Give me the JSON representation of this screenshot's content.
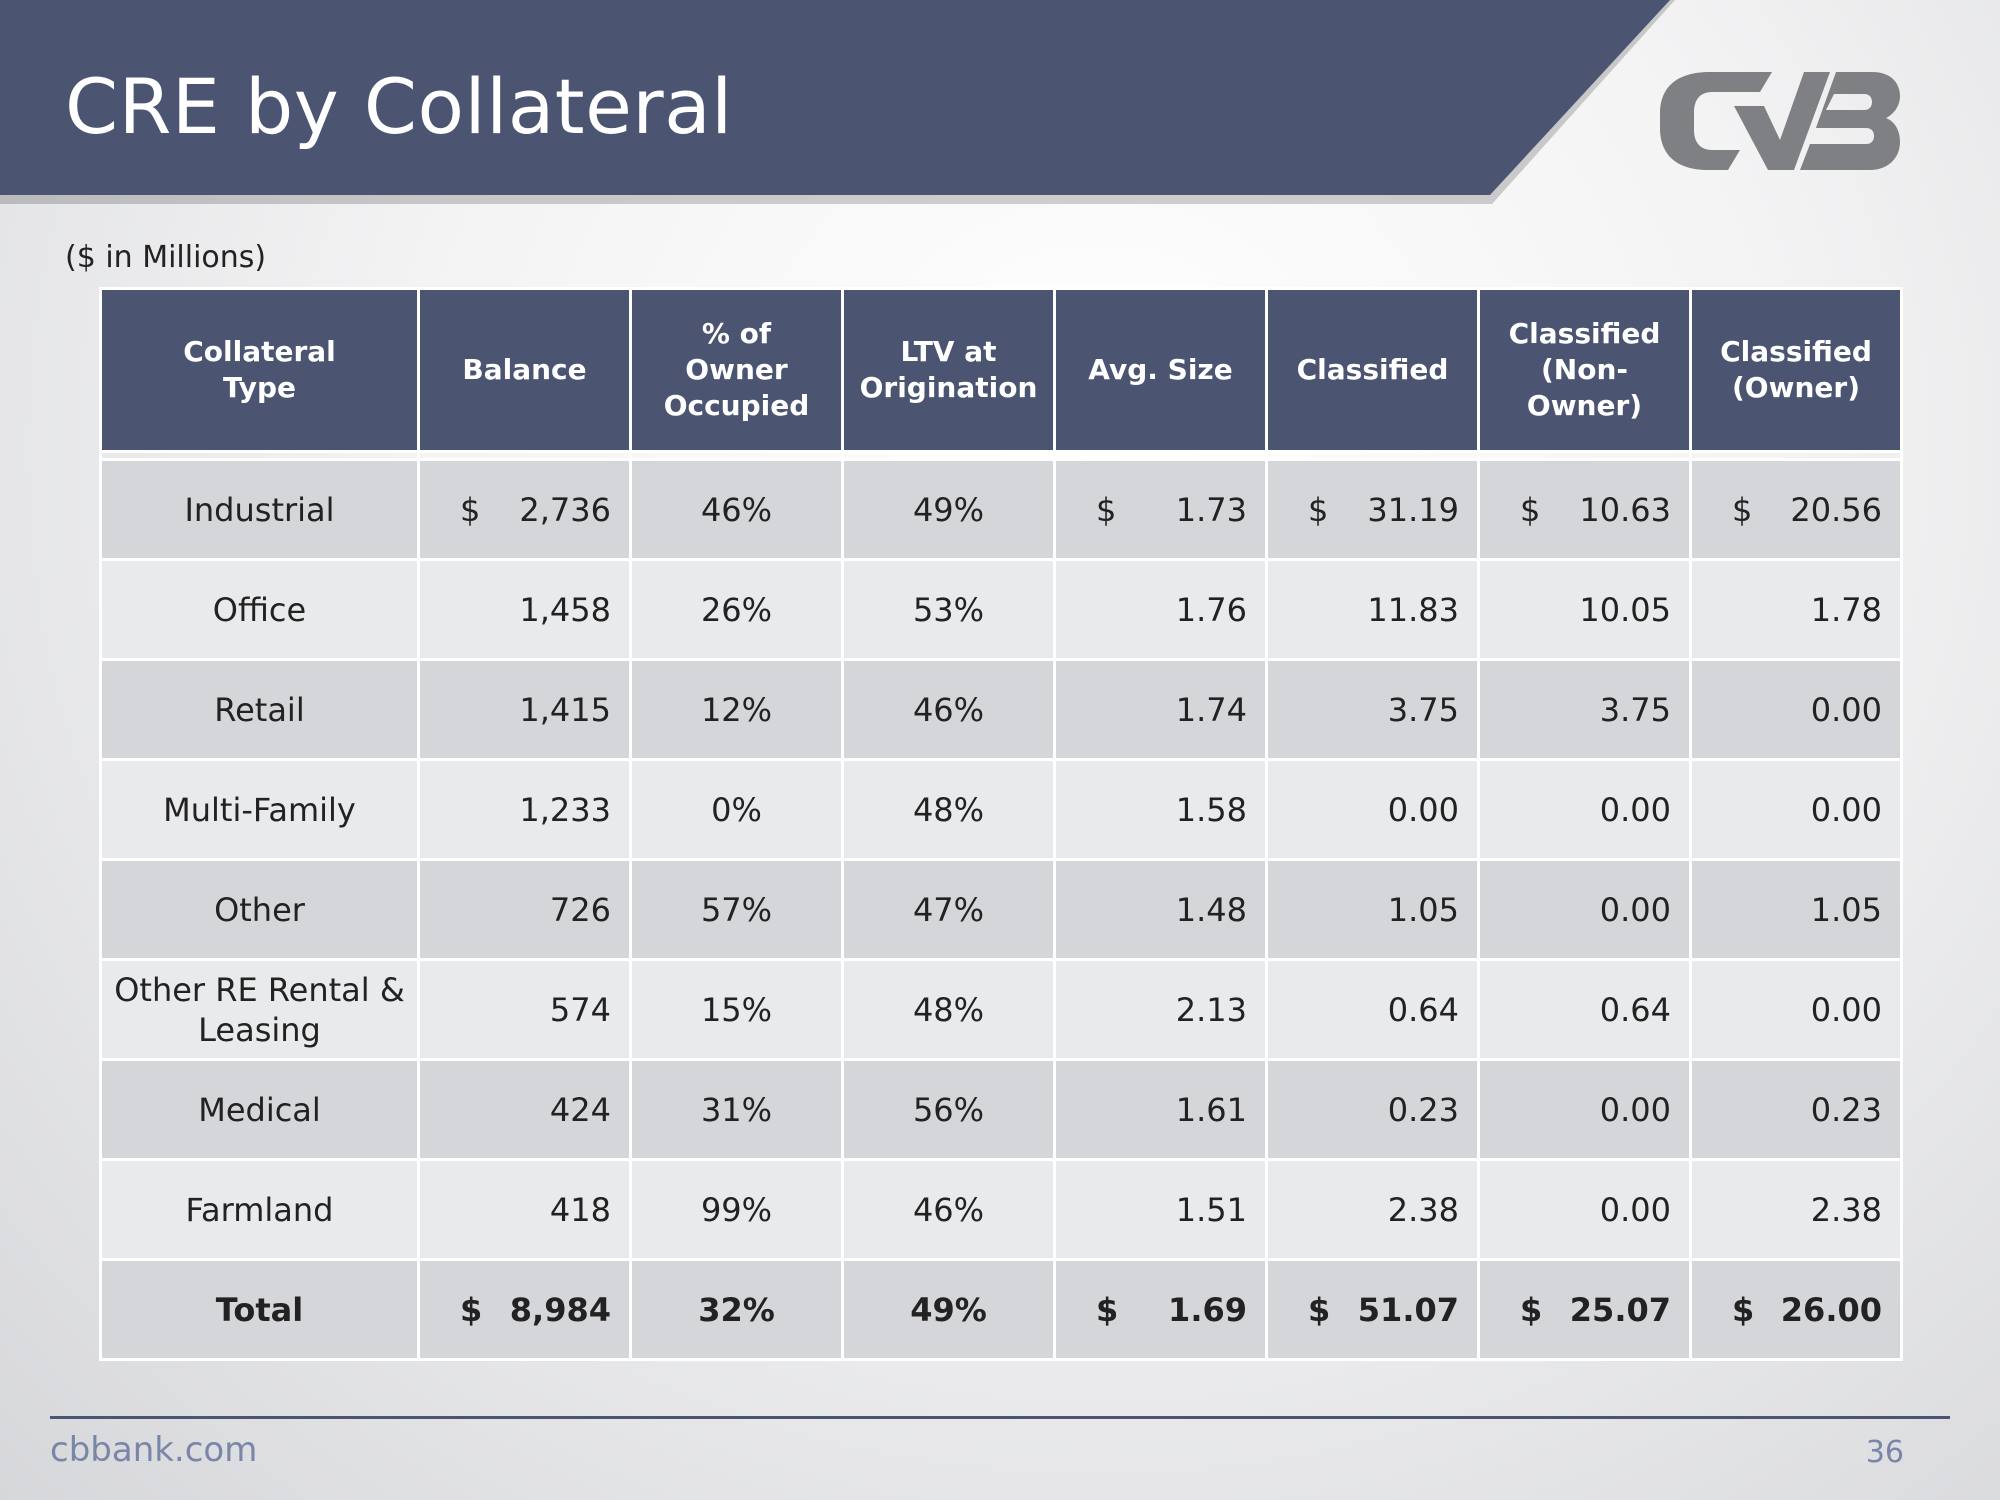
{
  "slide": {
    "title": "CRE by Collateral",
    "subtitle": "($ in Millions)",
    "footer_site": "cbbank.com",
    "page_number": "36",
    "accent_color": "#4b5572",
    "logo_icon": "cvb-logo"
  },
  "table": {
    "headers": [
      [
        "Collateral",
        "Type"
      ],
      [
        "Balance"
      ],
      [
        "% of",
        "Owner",
        "Occupied"
      ],
      [
        "LTV at",
        "Origination"
      ],
      [
        "Avg. Size"
      ],
      [
        "Classified"
      ],
      [
        "Classified",
        "(Non-",
        "Owner)"
      ],
      [
        "Classified",
        "(Owner)"
      ]
    ],
    "currency_symbol": "$",
    "rows": [
      {
        "type": [
          "Industrial"
        ],
        "balance": "2,736",
        "owner_occupied": "46%",
        "ltv": "49%",
        "avg_size": "1.73",
        "classified": "31.19",
        "classified_non_owner": "10.63",
        "classified_owner": "20.56",
        "show_currency": true
      },
      {
        "type": [
          "Office"
        ],
        "balance": "1,458",
        "owner_occupied": "26%",
        "ltv": "53%",
        "avg_size": "1.76",
        "classified": "11.83",
        "classified_non_owner": "10.05",
        "classified_owner": "1.78",
        "show_currency": false
      },
      {
        "type": [
          "Retail"
        ],
        "balance": "1,415",
        "owner_occupied": "12%",
        "ltv": "46%",
        "avg_size": "1.74",
        "classified": "3.75",
        "classified_non_owner": "3.75",
        "classified_owner": "0.00",
        "show_currency": false
      },
      {
        "type": [
          "Multi-Family"
        ],
        "balance": "1,233",
        "owner_occupied": "0%",
        "ltv": "48%",
        "avg_size": "1.58",
        "classified": "0.00",
        "classified_non_owner": "0.00",
        "classified_owner": "0.00",
        "show_currency": false
      },
      {
        "type": [
          "Other"
        ],
        "balance": "726",
        "owner_occupied": "57%",
        "ltv": "47%",
        "avg_size": "1.48",
        "classified": "1.05",
        "classified_non_owner": "0.00",
        "classified_owner": "1.05",
        "show_currency": false
      },
      {
        "type": [
          "Other RE Rental &",
          "Leasing"
        ],
        "balance": "574",
        "owner_occupied": "15%",
        "ltv": "48%",
        "avg_size": "2.13",
        "classified": "0.64",
        "classified_non_owner": "0.64",
        "classified_owner": "0.00",
        "show_currency": false
      },
      {
        "type": [
          "Medical"
        ],
        "balance": "424",
        "owner_occupied": "31%",
        "ltv": "56%",
        "avg_size": "1.61",
        "classified": "0.23",
        "classified_non_owner": "0.00",
        "classified_owner": "0.23",
        "show_currency": false
      },
      {
        "type": [
          "Farmland"
        ],
        "balance": "418",
        "owner_occupied": "99%",
        "ltv": "46%",
        "avg_size": "1.51",
        "classified": "2.38",
        "classified_non_owner": "0.00",
        "classified_owner": "2.38",
        "show_currency": false
      }
    ],
    "total": {
      "type": [
        "Total"
      ],
      "balance": "8,984",
      "owner_occupied": "32%",
      "ltv": "49%",
      "avg_size": "1.69",
      "classified": "51.07",
      "classified_non_owner": "25.07",
      "classified_owner": "26.00",
      "show_currency": true
    }
  }
}
